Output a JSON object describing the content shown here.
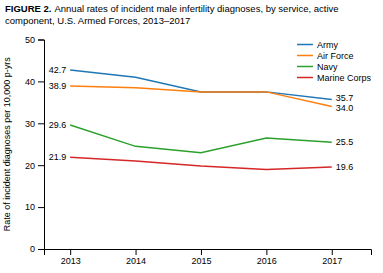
{
  "chart_data": {
    "type": "line",
    "title": "FIGURE 2.",
    "subtitle": "Annual rates of incident male infertility diagnoses, by service, active component, U.S. Armed Forces, 2013–2017",
    "y_label": "Rate of incident diagnoses per 10,000 p-yrs",
    "x": [
      2013,
      2014,
      2015,
      2016,
      2017
    ],
    "series": [
      {
        "name": "Army",
        "values": [
          42.7,
          41.0,
          37.5,
          37.5,
          35.7
        ],
        "value_labels": [
          "42.7",
          null,
          null,
          null,
          "35.7"
        ]
      },
      {
        "name": "Air Force",
        "values": [
          38.9,
          38.5,
          37.5,
          37.5,
          34.0
        ],
        "value_labels": [
          "38.9",
          null,
          null,
          null,
          "34.0"
        ]
      },
      {
        "name": "Navy",
        "values": [
          29.6,
          24.5,
          23.0,
          26.5,
          25.5
        ],
        "value_labels": [
          "29.6",
          null,
          null,
          null,
          "25.5"
        ]
      },
      {
        "name": "Marine Corps",
        "values": [
          21.9,
          21.0,
          19.8,
          19.0,
          19.6
        ],
        "value_labels": [
          "21.9",
          null,
          null,
          null,
          "19.6"
        ]
      }
    ],
    "xlim": [
      2012.6,
      2017.6
    ],
    "xticks": [
      2013,
      2014,
      2015,
      2016,
      2017
    ],
    "ylim": [
      0.0,
      50.0
    ],
    "yticks": [
      0.0,
      10.0,
      20.0,
      30.0,
      40.0,
      50.0
    ],
    "grid": false,
    "legend": "upper right",
    "data_labels": true
  }
}
